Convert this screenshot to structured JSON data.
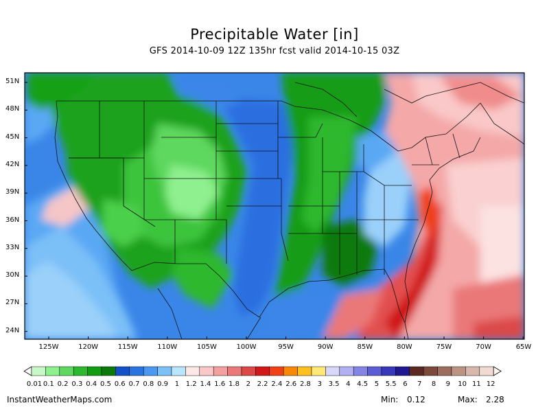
{
  "title": "Precipitable Water [in]",
  "subtitle": "GFS 2014-10-09 12Z 135hr fcst valid 2014-10-15 03Z",
  "lat_labels": [
    "51N",
    "48N",
    "45N",
    "42N",
    "39N",
    "36N",
    "33N",
    "30N",
    "27N",
    "24N"
  ],
  "lon_labels": [
    "125W",
    "120W",
    "115W",
    "110W",
    "105W",
    "100W",
    "95W",
    "90W",
    "85W",
    "80W",
    "75W",
    "70W",
    "65W"
  ],
  "legend": {
    "labels": [
      "0.01",
      "0.1",
      "0.2",
      "0.3",
      "0.4",
      "0.5",
      "0.6",
      "0.7",
      "0.8",
      "0.9",
      "1",
      "1.2",
      "1.4",
      "1.6",
      "1.8",
      "2",
      "2.2",
      "2.4",
      "2.6",
      "2.8",
      "3",
      "3.5",
      "4",
      "4.5",
      "5",
      "5.5",
      "6",
      "7",
      "8",
      "9",
      "10",
      "11",
      "12"
    ],
    "colors": [
      "#c8f7c8",
      "#8ef08e",
      "#5ed85e",
      "#2eb82e",
      "#129c12",
      "#0b7a0b",
      "#1450c8",
      "#2a74e0",
      "#4a98f0",
      "#7cc0f8",
      "#b8e6fc",
      "#fde8e8",
      "#fac8c8",
      "#f4a0a0",
      "#ea7878",
      "#dc4848",
      "#d01818",
      "#f04018",
      "#f88808",
      "#fcc020",
      "#fde878",
      "#d8d8fa",
      "#b0b0f2",
      "#8484e4",
      "#5c5cd4",
      "#3838b8",
      "#201890",
      "#5a2a20",
      "#7c4a3c",
      "#9c6e60",
      "#bc9484",
      "#d8b8ac",
      "#f0dad2"
    ]
  },
  "map": {
    "region": "Contiguous United States",
    "lat_range": [
      23,
      52
    ],
    "lon_range": [
      -128,
      -65
    ]
  },
  "footer": {
    "site": "InstantWeatherMaps.com",
    "min_label": "Min:",
    "min_value": "0.12",
    "max_label": "Max:",
    "max_value": "2.28"
  }
}
